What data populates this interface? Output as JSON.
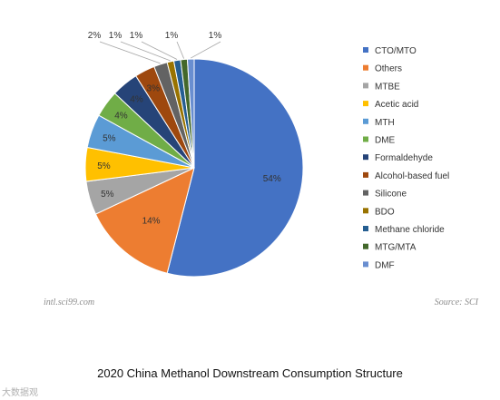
{
  "chart_data": {
    "type": "pie",
    "categories": [
      "CTO/MTO",
      "Others",
      "MTBE",
      "Acetic acid",
      "MTH",
      "DME",
      "Formaldehyde",
      "Alcohol-based fuel",
      "Silicone",
      "BDO",
      "Methane chloride",
      "MTG/MTA",
      "DMF"
    ],
    "values": [
      54,
      14,
      5,
      5,
      5,
      4,
      4,
      3,
      2,
      1,
      1,
      1,
      1
    ],
    "labels": [
      "54%",
      "14%",
      "5%",
      "5%",
      "5%",
      "4%",
      "4%",
      "3%",
      "2%",
      "1%",
      "1%",
      "1%",
      "1%"
    ],
    "colors": [
      "#4472C4",
      "#ED7D31",
      "#A5A5A5",
      "#FFC000",
      "#5B9BD5",
      "#70AD47",
      "#264478",
      "#9E480E",
      "#636363",
      "#997300",
      "#255E91",
      "#43682B",
      "#698ED0"
    ],
    "legend_position": "right"
  },
  "credit_left": "intl.sci99.com",
  "credit_right": "Source: SCI",
  "caption": "2020 China Methanol Downstream Consumption Structure",
  "watermark": "大数据观"
}
